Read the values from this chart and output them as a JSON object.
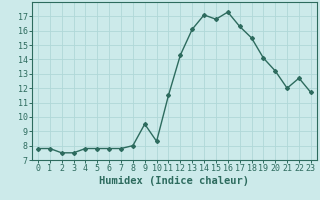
{
  "x": [
    0,
    1,
    2,
    3,
    4,
    5,
    6,
    7,
    8,
    9,
    10,
    11,
    12,
    13,
    14,
    15,
    16,
    17,
    18,
    19,
    20,
    21,
    22,
    23
  ],
  "y": [
    7.8,
    7.8,
    7.5,
    7.5,
    7.8,
    7.8,
    7.8,
    7.8,
    8.0,
    9.5,
    8.3,
    11.5,
    14.3,
    16.1,
    17.1,
    16.8,
    17.3,
    16.3,
    15.5,
    14.1,
    13.2,
    12.0,
    12.7,
    11.7
  ],
  "line_color": "#2d6b5e",
  "marker": "D",
  "marker_size": 2.0,
  "bg_color": "#cceaea",
  "grid_color": "#b0d8d8",
  "xlabel": "Humidex (Indice chaleur)",
  "xlim": [
    -0.5,
    23.5
  ],
  "ylim": [
    7,
    18
  ],
  "yticks": [
    7,
    8,
    9,
    10,
    11,
    12,
    13,
    14,
    15,
    16,
    17
  ],
  "xticks": [
    0,
    1,
    2,
    3,
    4,
    5,
    6,
    7,
    8,
    9,
    10,
    11,
    12,
    13,
    14,
    15,
    16,
    17,
    18,
    19,
    20,
    21,
    22,
    23
  ],
  "tick_color": "#2d6b5e",
  "xlabel_fontsize": 7.5,
  "tick_fontsize": 6.0,
  "axis_color": "#2d6b5e",
  "linewidth": 1.0
}
